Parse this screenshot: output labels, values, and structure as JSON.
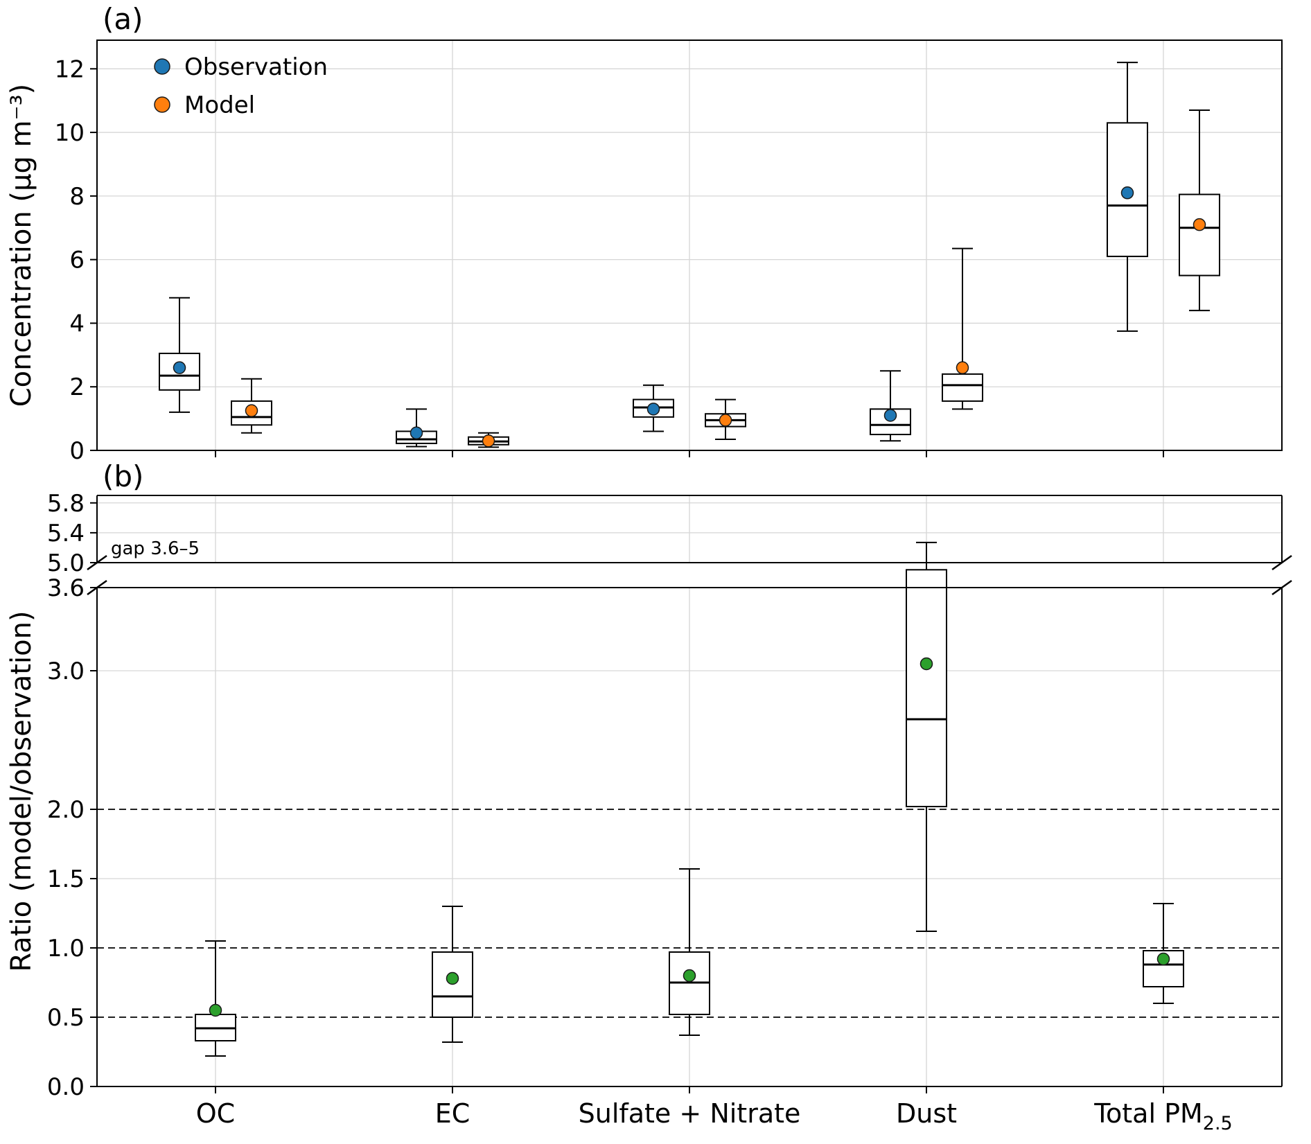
{
  "figure": {
    "panel_a_label": "(a)",
    "panel_b_label": "(b)"
  },
  "chart_data": [
    {
      "type": "boxplot",
      "panel": "a",
      "ylabel": "Concentration (µg m⁻³)",
      "ylim": [
        0,
        12.9
      ],
      "yticks": [
        {
          "value": 0,
          "label": "0"
        },
        {
          "value": 2,
          "label": "2"
        },
        {
          "value": 4,
          "label": "4"
        },
        {
          "value": 6,
          "label": "6"
        },
        {
          "value": 8,
          "label": "8"
        },
        {
          "value": 10,
          "label": "10"
        },
        {
          "value": 12,
          "label": "12"
        }
      ],
      "grid": true,
      "legend_position": "upper-left",
      "legend": [
        {
          "label": "Observation",
          "color": "#1f77b4"
        },
        {
          "label": "Model",
          "color": "#ff7f0e"
        }
      ],
      "categories": [
        "OC",
        "EC",
        "Sulfate + Nitrate",
        "Dust",
        "Total PM_{2.5}"
      ],
      "series": [
        {
          "name": "Observation",
          "color": "#1f77b4",
          "boxes": [
            {
              "whisker_low": 1.2,
              "q1": 1.9,
              "median": 2.35,
              "q3": 3.05,
              "whisker_high": 4.8,
              "mean": 2.6
            },
            {
              "whisker_low": 0.12,
              "q1": 0.22,
              "median": 0.35,
              "q3": 0.6,
              "whisker_high": 1.3,
              "mean": 0.55
            },
            {
              "whisker_low": 0.6,
              "q1": 1.05,
              "median": 1.35,
              "q3": 1.6,
              "whisker_high": 2.05,
              "mean": 1.3
            },
            {
              "whisker_low": 0.3,
              "q1": 0.5,
              "median": 0.8,
              "q3": 1.3,
              "whisker_high": 2.5,
              "mean": 1.1
            },
            {
              "whisker_low": 3.75,
              "q1": 6.1,
              "median": 7.7,
              "q3": 10.3,
              "whisker_high": 12.2,
              "mean": 8.1
            }
          ]
        },
        {
          "name": "Model",
          "color": "#ff7f0e",
          "boxes": [
            {
              "whisker_low": 0.55,
              "q1": 0.8,
              "median": 1.05,
              "q3": 1.55,
              "whisker_high": 2.25,
              "mean": 1.25
            },
            {
              "whisker_low": 0.1,
              "q1": 0.18,
              "median": 0.28,
              "q3": 0.42,
              "whisker_high": 0.55,
              "mean": 0.3
            },
            {
              "whisker_low": 0.35,
              "q1": 0.75,
              "median": 0.95,
              "q3": 1.15,
              "whisker_high": 1.6,
              "mean": 0.95
            },
            {
              "whisker_low": 1.3,
              "q1": 1.55,
              "median": 2.05,
              "q3": 2.4,
              "whisker_high": 6.35,
              "mean": 2.6
            },
            {
              "whisker_low": 4.4,
              "q1": 5.5,
              "median": 7.0,
              "q3": 8.05,
              "whisker_high": 10.7,
              "mean": 7.1
            }
          ]
        }
      ]
    },
    {
      "type": "boxplot",
      "panel": "b",
      "ylabel": "Ratio (model/observation)",
      "broken_axis": {
        "lower_max": 3.6,
        "upper_min": 5.0,
        "upper_max": 5.9,
        "gap_label": "gap 3.6–5"
      },
      "yticks_upper": [
        {
          "value": 5.0,
          "label": "5.0"
        },
        {
          "value": 5.4,
          "label": "5.4"
        },
        {
          "value": 5.8,
          "label": "5.8"
        }
      ],
      "yticks_lower": [
        {
          "value": 0.0,
          "label": "0.0"
        },
        {
          "value": 0.5,
          "label": "0.5"
        },
        {
          "value": 1.0,
          "label": "1.0"
        },
        {
          "value": 1.5,
          "label": "1.5"
        },
        {
          "value": 2.0,
          "label": "2.0"
        },
        {
          "value": 3.0,
          "label": "3.0"
        },
        {
          "value": 3.6,
          "label": "3.6"
        }
      ],
      "reference_lines": [
        0.5,
        1.0,
        2.0
      ],
      "grid": true,
      "categories": [
        "OC",
        "EC",
        "Sulfate + Nitrate",
        "Dust",
        "Total PM_{2.5}"
      ],
      "series": [
        {
          "name": "Model/Observation ratio",
          "color": "#2ca02c",
          "boxes": [
            {
              "whisker_low": 0.22,
              "q1": 0.33,
              "median": 0.42,
              "q3": 0.52,
              "whisker_high": 1.05,
              "mean": 0.55
            },
            {
              "whisker_low": 0.32,
              "q1": 0.5,
              "median": 0.65,
              "q3": 0.97,
              "whisker_high": 1.3,
              "mean": 0.78
            },
            {
              "whisker_low": 0.37,
              "q1": 0.52,
              "median": 0.75,
              "q3": 0.97,
              "whisker_high": 1.57,
              "mean": 0.8
            },
            {
              "whisker_low": 1.12,
              "q1": 2.02,
              "median": 2.65,
              "q3": 4.6,
              "whisker_high": 5.27,
              "mean": 3.05
            },
            {
              "whisker_low": 0.6,
              "q1": 0.72,
              "median": 0.88,
              "q3": 0.98,
              "whisker_high": 1.32,
              "mean": 0.92
            }
          ]
        }
      ]
    }
  ]
}
